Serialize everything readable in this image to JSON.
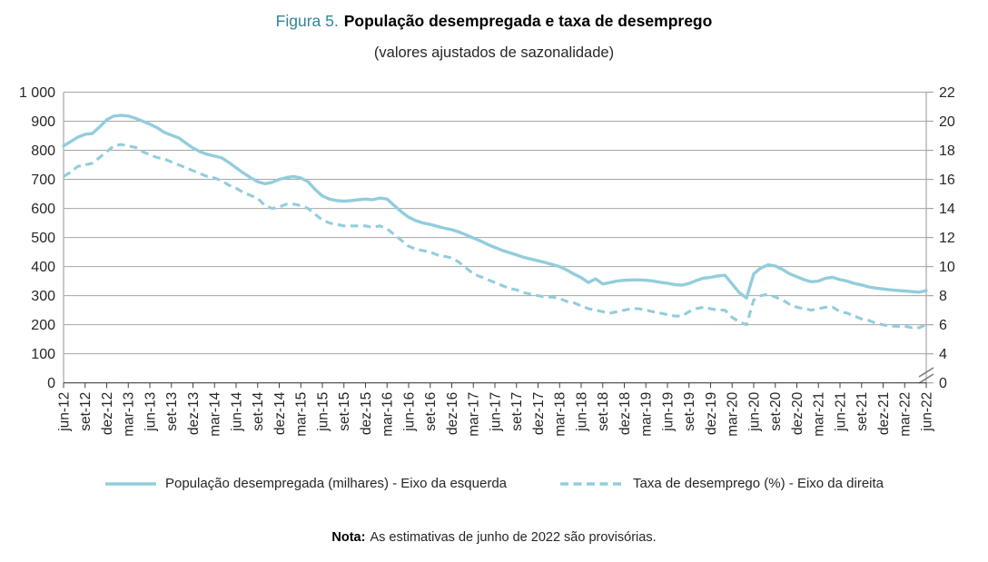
{
  "colors": {
    "line": "#92CDDC",
    "title_accent": "#31859C",
    "grid": "#A6A6A6",
    "axis": "#404040",
    "text": "#262626"
  },
  "header": {
    "figure_label": "Figura 5.",
    "title": "População desempregada e taxa de desemprego",
    "subtitle": "(valores ajustados de sazonalidade)"
  },
  "legend": {
    "items": [
      {
        "label": "População desempregada (milhares) - Eixo da esquerda",
        "line_style": "solid"
      },
      {
        "label": "Taxa de desemprego (%) - Eixo da direita",
        "line_style": "dashed"
      }
    ]
  },
  "note": {
    "label": "Nota:",
    "text": "As estimativas de junho de 2022 são provisórias."
  },
  "chart_data": {
    "type": "line",
    "frequency": "monthly",
    "x_start": "jun-12",
    "x_end": "jun-22",
    "grid": "horizontal",
    "legend_position": "bottom",
    "x_tick_labels": [
      "jun-12",
      "set-12",
      "dez-12",
      "mar-13",
      "jun-13",
      "set-13",
      "dez-13",
      "mar-14",
      "jun-14",
      "set-14",
      "dez-14",
      "mar-15",
      "jun-15",
      "set-15",
      "dez-15",
      "mar-16",
      "jun-16",
      "set-16",
      "dez-16",
      "mar-17",
      "jun-17",
      "set-17",
      "dez-17",
      "mar-18",
      "jun-18",
      "set-18",
      "dez-18",
      "mar-19",
      "jun-19",
      "set-19",
      "dez-19",
      "mar-20",
      "jun-20",
      "set-20",
      "dez-20",
      "mar-21",
      "jun-21",
      "set-21",
      "dez-21",
      "mar-22",
      "jun-22"
    ],
    "left_axis": {
      "min": 0,
      "max": 1000,
      "step": 100,
      "tick_labels_top_to_bottom": [
        "1 000",
        "900",
        "800",
        "700",
        "600",
        "500",
        "400",
        "300",
        "200",
        "100",
        "0"
      ]
    },
    "right_axis": {
      "min": 0,
      "max": 22,
      "tick_labels_top_to_bottom": [
        "22",
        "20",
        "18",
        "16",
        "14",
        "12",
        "10",
        "8",
        "6",
        "4",
        "0"
      ],
      "axis_break": "double-slash break between 4 and 0; right value v aligns with left value (v-2)*50"
    },
    "series": [
      {
        "name": "População desempregada (milhares) - Eixo da esquerda",
        "axis": "left",
        "style": "solid",
        "color": "#92CDDC",
        "values": [
          815,
          830,
          845,
          855,
          858,
          880,
          905,
          918,
          920,
          918,
          910,
          900,
          890,
          878,
          862,
          852,
          843,
          825,
          808,
          795,
          786,
          780,
          774,
          758,
          740,
          722,
          706,
          692,
          685,
          690,
          700,
          706,
          710,
          705,
          692,
          665,
          643,
          632,
          627,
          625,
          627,
          630,
          632,
          630,
          636,
          632,
          610,
          588,
          570,
          558,
          550,
          545,
          538,
          532,
          527,
          519,
          509,
          498,
          488,
          476,
          466,
          456,
          448,
          440,
          432,
          426,
          420,
          414,
          407,
          400,
          388,
          374,
          362,
          345,
          358,
          340,
          345,
          350,
          353,
          354,
          354,
          353,
          350,
          346,
          343,
          338,
          336,
          342,
          352,
          360,
          363,
          368,
          370,
          340,
          310,
          292,
          375,
          395,
          406,
          402,
          390,
          375,
          365,
          355,
          348,
          350,
          360,
          363,
          355,
          350,
          342,
          337,
          330,
          326,
          323,
          320,
          318,
          316,
          314,
          312,
          317
        ]
      },
      {
        "name": "Taxa de desemprego (%) - Eixo da direita",
        "axis": "right",
        "style": "dashed",
        "color": "#92CDDC",
        "values": [
          16.2,
          16.5,
          16.9,
          17.0,
          17.1,
          17.5,
          17.9,
          18.3,
          18.4,
          18.3,
          18.2,
          17.9,
          17.7,
          17.5,
          17.4,
          17.2,
          17.0,
          16.8,
          16.6,
          16.4,
          16.2,
          16.1,
          15.9,
          15.6,
          15.4,
          15.1,
          14.9,
          14.7,
          14.2,
          14.0,
          14.1,
          14.3,
          14.3,
          14.2,
          14.0,
          13.6,
          13.2,
          13.0,
          12.9,
          12.8,
          12.8,
          12.8,
          12.8,
          12.7,
          12.8,
          12.6,
          12.2,
          11.8,
          11.4,
          11.2,
          11.1,
          11.0,
          10.8,
          10.7,
          10.6,
          10.3,
          9.9,
          9.5,
          9.3,
          9.1,
          8.9,
          8.7,
          8.5,
          8.4,
          8.2,
          8.1,
          8.0,
          7.9,
          7.9,
          7.8,
          7.6,
          7.5,
          7.3,
          7.1,
          7.0,
          6.9,
          6.8,
          6.9,
          7.0,
          7.1,
          7.1,
          7.0,
          6.9,
          6.8,
          6.7,
          6.6,
          6.6,
          6.9,
          7.1,
          7.2,
          7.1,
          7.0,
          7.0,
          6.5,
          6.2,
          6.0,
          7.7,
          8.0,
          8.1,
          7.9,
          7.7,
          7.4,
          7.2,
          7.1,
          7.0,
          7.1,
          7.2,
          7.2,
          6.9,
          6.8,
          6.6,
          6.4,
          6.3,
          6.1,
          6.0,
          5.9,
          5.9,
          5.9,
          5.8,
          5.8,
          6.0
        ]
      }
    ]
  }
}
